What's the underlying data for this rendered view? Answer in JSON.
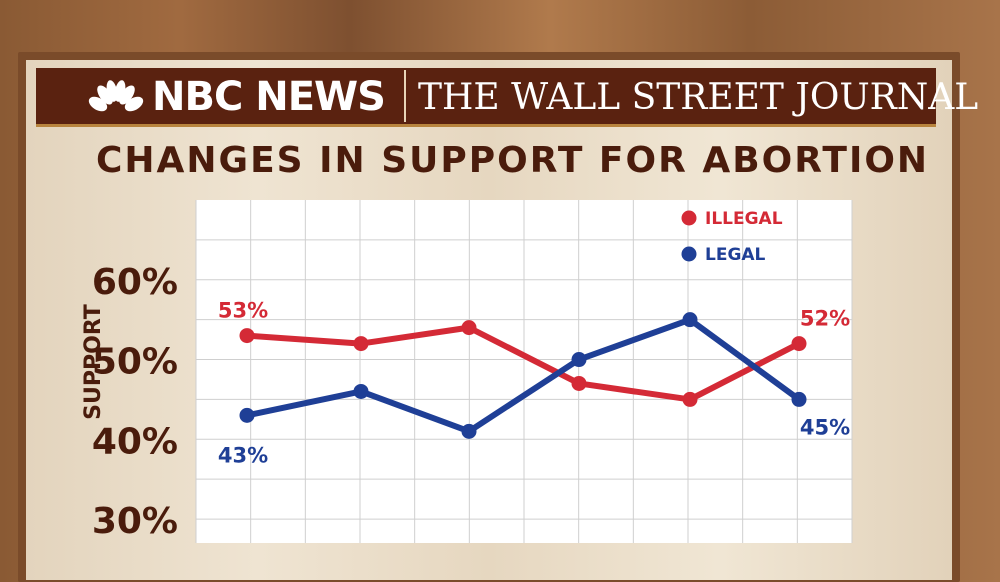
{
  "header": {
    "left_brand": "NBC NEWS",
    "right_brand": "THE WALL STREET JOURNAL"
  },
  "colors": {
    "illegal": "#d42a36",
    "legal": "#1f3f96",
    "axis_text": "#4a1c0c",
    "banner": "#5a2210"
  },
  "chart_data": {
    "type": "line",
    "title": "CHANGES IN SUPPORT FOR ABORTION",
    "ylabel": "SUPPORT",
    "yticks": [
      "30%",
      "40%",
      "50%",
      "60%"
    ],
    "ylim": [
      27,
      70
    ],
    "legend_position": "top-right",
    "grid": true,
    "series": [
      {
        "name": "ILLEGAL",
        "values": [
          53,
          52,
          54,
          47,
          45,
          52
        ],
        "first_label": "53%",
        "last_label": "52%"
      },
      {
        "name": "LEGAL",
        "values": [
          43,
          46,
          41,
          50,
          55,
          45
        ],
        "first_label": "43%",
        "last_label": "45%"
      }
    ]
  }
}
